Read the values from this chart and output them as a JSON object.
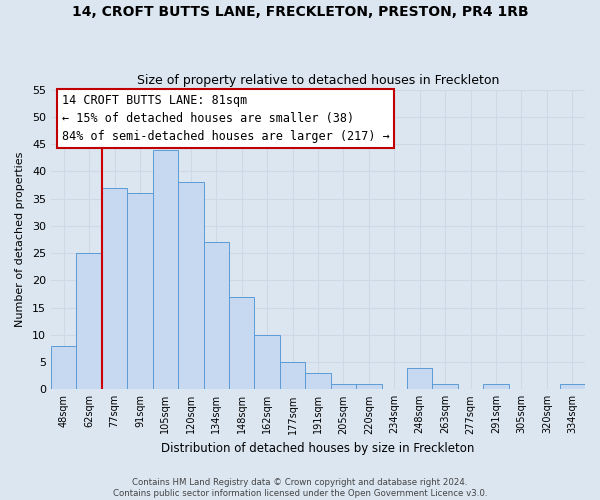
{
  "title": "14, CROFT BUTTS LANE, FRECKLETON, PRESTON, PR4 1RB",
  "subtitle": "Size of property relative to detached houses in Freckleton",
  "xlabel": "Distribution of detached houses by size in Freckleton",
  "ylabel": "Number of detached properties",
  "bin_labels": [
    "48sqm",
    "62sqm",
    "77sqm",
    "91sqm",
    "105sqm",
    "120sqm",
    "134sqm",
    "148sqm",
    "162sqm",
    "177sqm",
    "191sqm",
    "205sqm",
    "220sqm",
    "234sqm",
    "248sqm",
    "263sqm",
    "277sqm",
    "291sqm",
    "305sqm",
    "320sqm",
    "334sqm"
  ],
  "bar_heights": [
    8,
    25,
    37,
    36,
    44,
    38,
    27,
    17,
    10,
    5,
    3,
    1,
    1,
    0,
    4,
    1,
    0,
    1,
    0,
    0,
    1
  ],
  "bar_color": "#c6d9f1",
  "bar_edge_color": "#5b9bd5",
  "annotation_text": "14 CROFT BUTTS LANE: 81sqm\n← 15% of detached houses are smaller (38)\n84% of semi-detached houses are larger (217) →",
  "annotation_box_color": "#ffffff",
  "annotation_box_edge": "#c00000",
  "ylim": [
    0,
    55
  ],
  "yticks": [
    0,
    5,
    10,
    15,
    20,
    25,
    30,
    35,
    40,
    45,
    50,
    55
  ],
  "grid_color": "#d0d8e8",
  "background_color": "#dce6f1",
  "footer_text": "Contains HM Land Registry data © Crown copyright and database right 2024.\nContains public sector information licensed under the Open Government Licence v3.0.",
  "property_line_color": "#cc0000",
  "title_fontsize": 10,
  "subtitle_fontsize": 9,
  "annotation_fontsize": 8.5,
  "xlabel_fontsize": 8.5,
  "ylabel_fontsize": 8,
  "ytick_fontsize": 8,
  "xtick_fontsize": 7
}
